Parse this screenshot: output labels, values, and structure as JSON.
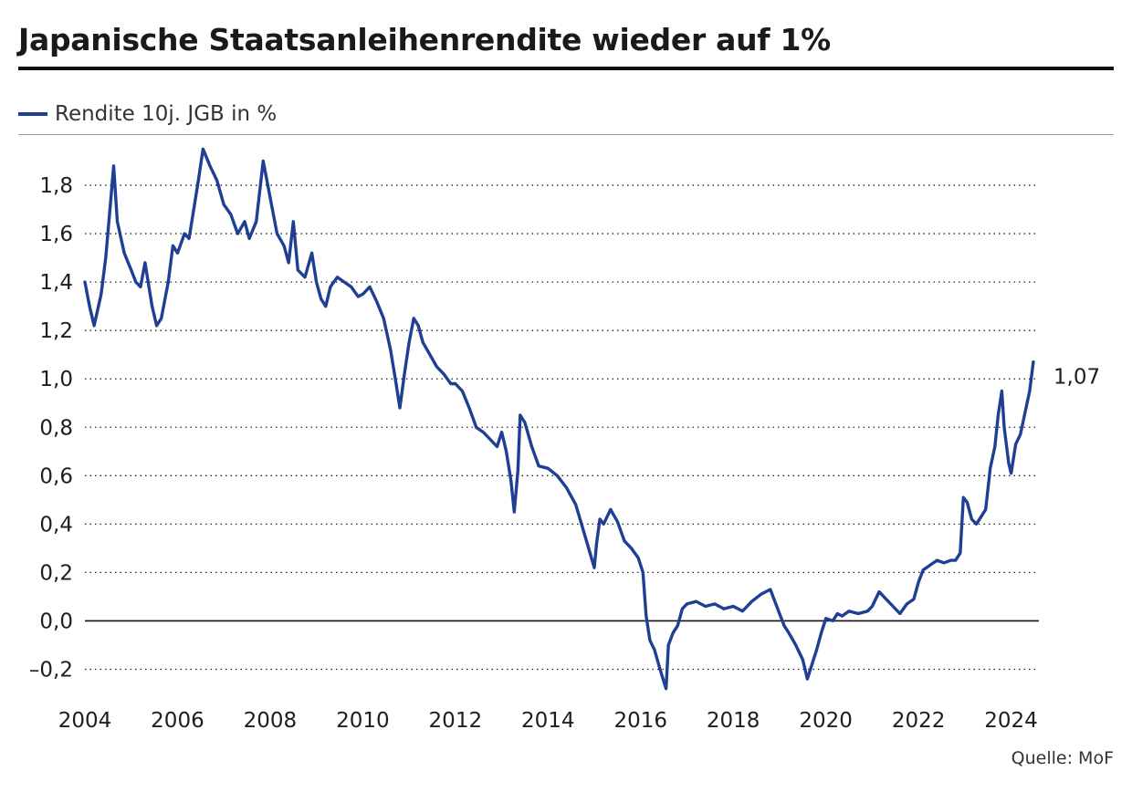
{
  "title": "Japanische Staatsanleihenrendite wieder auf 1%",
  "legend": {
    "label": "Rendite 10j. JGB in %"
  },
  "source": "Quelle: MoF",
  "colors": {
    "line": "#1f3f94",
    "grid": "#222222",
    "text": "#1e1e1e"
  },
  "chart_data": {
    "type": "line",
    "title": "Japanische Staatsanleihenrendite wieder auf 1%",
    "xlabel": "",
    "ylabel": "Rendite 10j. JGB in %",
    "xlim": [
      2004.0,
      2024.6
    ],
    "ylim": [
      -0.3,
      2.0
    ],
    "x_ticks": [
      2004,
      2006,
      2008,
      2010,
      2012,
      2014,
      2016,
      2018,
      2020,
      2022,
      2024
    ],
    "x_tick_labels": [
      "2004",
      "2006",
      "2008",
      "2010",
      "2012",
      "2014",
      "2016",
      "2018",
      "2020",
      "2022",
      "2024"
    ],
    "y_ticks": [
      -0.2,
      0.0,
      0.2,
      0.4,
      0.6,
      0.8,
      1.0,
      1.2,
      1.4,
      1.6,
      1.8
    ],
    "y_tick_labels": [
      "–0,2",
      "0,0",
      "0,2",
      "0,4",
      "0,6",
      "0,8",
      "1,0",
      "1,2",
      "1,4",
      "1,6",
      "1,8"
    ],
    "grid": "dotted horizontal",
    "end_label": "1,07",
    "series": [
      {
        "name": "Rendite 10j. JGB in %",
        "x": [
          2004.0,
          2004.1,
          2004.2,
          2004.35,
          2004.45,
          2004.55,
          2004.62,
          2004.7,
          2004.85,
          2005.0,
          2005.1,
          2005.2,
          2005.3,
          2005.45,
          2005.55,
          2005.65,
          2005.8,
          2005.9,
          2006.0,
          2006.15,
          2006.25,
          2006.35,
          2006.45,
          2006.55,
          2006.7,
          2006.85,
          2007.0,
          2007.15,
          2007.3,
          2007.45,
          2007.55,
          2007.7,
          2007.85,
          2008.0,
          2008.15,
          2008.3,
          2008.4,
          2008.5,
          2008.6,
          2008.75,
          2008.9,
          2009.0,
          2009.1,
          2009.2,
          2009.3,
          2009.45,
          2009.6,
          2009.75,
          2009.9,
          2010.0,
          2010.15,
          2010.3,
          2010.45,
          2010.6,
          2010.72,
          2010.8,
          2010.9,
          2011.0,
          2011.1,
          2011.2,
          2011.3,
          2011.45,
          2011.6,
          2011.75,
          2011.9,
          2012.0,
          2012.15,
          2012.3,
          2012.45,
          2012.6,
          2012.75,
          2012.9,
          2013.0,
          2013.1,
          2013.2,
          2013.27,
          2013.35,
          2013.4,
          2013.5,
          2013.65,
          2013.8,
          2014.0,
          2014.2,
          2014.4,
          2014.6,
          2014.8,
          2015.0,
          2015.05,
          2015.12,
          2015.2,
          2015.35,
          2015.5,
          2015.65,
          2015.8,
          2015.95,
          2016.05,
          2016.12,
          2016.2,
          2016.3,
          2016.42,
          2016.55,
          2016.6,
          2016.7,
          2016.8,
          2016.9,
          2017.0,
          2017.2,
          2017.4,
          2017.6,
          2017.8,
          2018.0,
          2018.2,
          2018.4,
          2018.6,
          2018.8,
          2018.9,
          2019.0,
          2019.1,
          2019.2,
          2019.35,
          2019.5,
          2019.6,
          2019.7,
          2019.8,
          2019.9,
          2020.0,
          2020.15,
          2020.25,
          2020.35,
          2020.5,
          2020.7,
          2020.9,
          2021.0,
          2021.15,
          2021.3,
          2021.45,
          2021.6,
          2021.75,
          2021.9,
          2022.0,
          2022.1,
          2022.25,
          2022.4,
          2022.55,
          2022.7,
          2022.8,
          2022.9,
          2022.97,
          2023.05,
          2023.15,
          2023.25,
          2023.35,
          2023.45,
          2023.55,
          2023.65,
          2023.72,
          2023.8,
          2023.85,
          2023.95,
          2024.0,
          2024.1,
          2024.2,
          2024.3,
          2024.4,
          2024.48
        ],
        "y": [
          1.4,
          1.3,
          1.22,
          1.35,
          1.5,
          1.72,
          1.88,
          1.65,
          1.52,
          1.45,
          1.4,
          1.38,
          1.48,
          1.3,
          1.22,
          1.25,
          1.4,
          1.55,
          1.52,
          1.6,
          1.58,
          1.7,
          1.82,
          1.95,
          1.88,
          1.82,
          1.72,
          1.68,
          1.6,
          1.65,
          1.58,
          1.65,
          1.9,
          1.75,
          1.6,
          1.55,
          1.48,
          1.65,
          1.45,
          1.42,
          1.52,
          1.4,
          1.33,
          1.3,
          1.38,
          1.42,
          1.4,
          1.38,
          1.34,
          1.35,
          1.38,
          1.32,
          1.25,
          1.12,
          0.98,
          0.88,
          1.02,
          1.15,
          1.25,
          1.22,
          1.15,
          1.1,
          1.05,
          1.02,
          0.98,
          0.98,
          0.95,
          0.88,
          0.8,
          0.78,
          0.75,
          0.72,
          0.78,
          0.7,
          0.58,
          0.45,
          0.62,
          0.85,
          0.82,
          0.72,
          0.64,
          0.63,
          0.6,
          0.55,
          0.48,
          0.35,
          0.22,
          0.32,
          0.42,
          0.4,
          0.46,
          0.41,
          0.33,
          0.3,
          0.26,
          0.2,
          0.02,
          -0.08,
          -0.12,
          -0.2,
          -0.28,
          -0.1,
          -0.05,
          -0.02,
          0.05,
          0.07,
          0.08,
          0.06,
          0.07,
          0.05,
          0.06,
          0.04,
          0.08,
          0.11,
          0.13,
          0.08,
          0.03,
          -0.02,
          -0.05,
          -0.1,
          -0.16,
          -0.24,
          -0.18,
          -0.12,
          -0.05,
          0.01,
          0.0,
          0.03,
          0.02,
          0.04,
          0.03,
          0.04,
          0.06,
          0.12,
          0.09,
          0.06,
          0.03,
          0.07,
          0.09,
          0.16,
          0.21,
          0.23,
          0.25,
          0.24,
          0.25,
          0.25,
          0.28,
          0.51,
          0.49,
          0.42,
          0.4,
          0.43,
          0.46,
          0.63,
          0.72,
          0.85,
          0.95,
          0.8,
          0.65,
          0.61,
          0.73,
          0.77,
          0.86,
          0.95,
          1.07
        ]
      }
    ]
  }
}
